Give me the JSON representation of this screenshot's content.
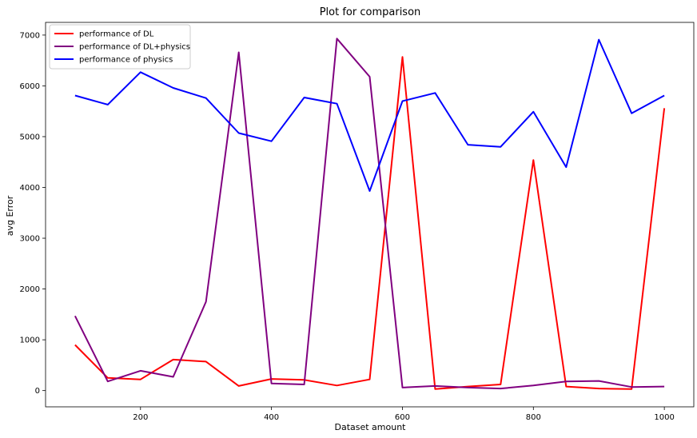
{
  "chart_data": {
    "type": "line",
    "title": "Plot for comparison",
    "xlabel": "Dataset amount",
    "ylabel": "avg Error",
    "xlim": [
      55,
      1045
    ],
    "ylim": [
      -320,
      7250
    ],
    "xticks": [
      200,
      400,
      600,
      800,
      1000
    ],
    "yticks": [
      0,
      1000,
      2000,
      3000,
      4000,
      5000,
      6000,
      7000
    ],
    "grid": false,
    "legend_position": "top-left",
    "x": [
      100,
      150,
      200,
      250,
      300,
      350,
      400,
      450,
      500,
      550,
      600,
      650,
      700,
      750,
      800,
      850,
      900,
      950,
      1000
    ],
    "series": [
      {
        "name": "performance of DL",
        "color": "#ff0000",
        "values": [
          900,
          250,
          220,
          610,
          570,
          90,
          230,
          210,
          100,
          220,
          6570,
          30,
          80,
          120,
          4540,
          80,
          40,
          30,
          5560
        ]
      },
      {
        "name": "performance of DL+physics",
        "color": "#800080",
        "values": [
          1470,
          180,
          390,
          270,
          1750,
          6660,
          140,
          120,
          6930,
          6180,
          60,
          90,
          60,
          40,
          100,
          180,
          190,
          70,
          80
        ]
      },
      {
        "name": "performance of physics",
        "color": "#0000ff",
        "values": [
          5810,
          5630,
          6270,
          5960,
          5760,
          5070,
          4910,
          5770,
          5650,
          3930,
          5700,
          5860,
          4840,
          4800,
          5490,
          4400,
          6910,
          5460,
          5810
        ]
      }
    ]
  }
}
